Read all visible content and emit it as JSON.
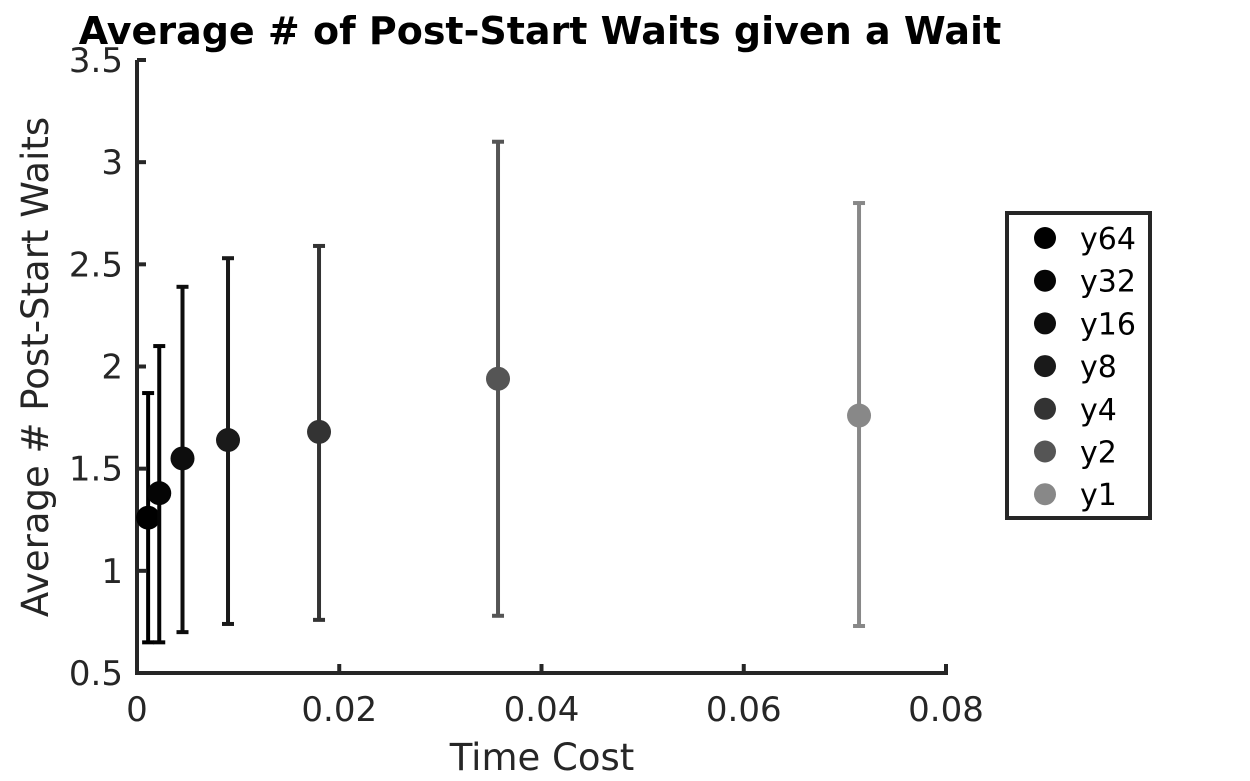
{
  "chart_data": {
    "type": "scatter",
    "title": "Average # of Post-Start Waits given a Wait",
    "xlabel": "Time Cost",
    "ylabel": "Average # Post-Start Waits",
    "xlim": [
      0,
      0.08
    ],
    "ylim": [
      0.5,
      3.5
    ],
    "xticks": [
      0,
      0.02,
      0.04,
      0.06,
      0.08
    ],
    "xtick_labels": [
      "0",
      "0.02",
      "0.04",
      "0.06",
      "0.08"
    ],
    "yticks": [
      0.5,
      1,
      1.5,
      2,
      2.5,
      3,
      3.5
    ],
    "ytick_labels": [
      "0.5",
      "1",
      "1.5",
      "2",
      "2.5",
      "3",
      "3.5"
    ],
    "grid": false,
    "legend_position": "right",
    "error_bars": true,
    "series": [
      {
        "name": "y64",
        "x": 0.0011,
        "y": 1.26,
        "err_low": 0.65,
        "err_high": 1.87,
        "color": "#000000"
      },
      {
        "name": "y32",
        "x": 0.0022,
        "y": 1.38,
        "err_low": 0.65,
        "err_high": 2.1,
        "color": "#050505"
      },
      {
        "name": "y16",
        "x": 0.0045,
        "y": 1.55,
        "err_low": 0.7,
        "err_high": 2.39,
        "color": "#0d0d0d"
      },
      {
        "name": "y8",
        "x": 0.009,
        "y": 1.64,
        "err_low": 0.74,
        "err_high": 2.53,
        "color": "#1a1a1a"
      },
      {
        "name": "y4",
        "x": 0.018,
        "y": 1.68,
        "err_low": 0.76,
        "err_high": 2.59,
        "color": "#333333"
      },
      {
        "name": "y2",
        "x": 0.0357,
        "y": 1.94,
        "err_low": 0.78,
        "err_high": 3.1,
        "color": "#555555"
      },
      {
        "name": "y1",
        "x": 0.0714,
        "y": 1.76,
        "err_low": 0.73,
        "err_high": 2.8,
        "color": "#888888"
      }
    ]
  }
}
